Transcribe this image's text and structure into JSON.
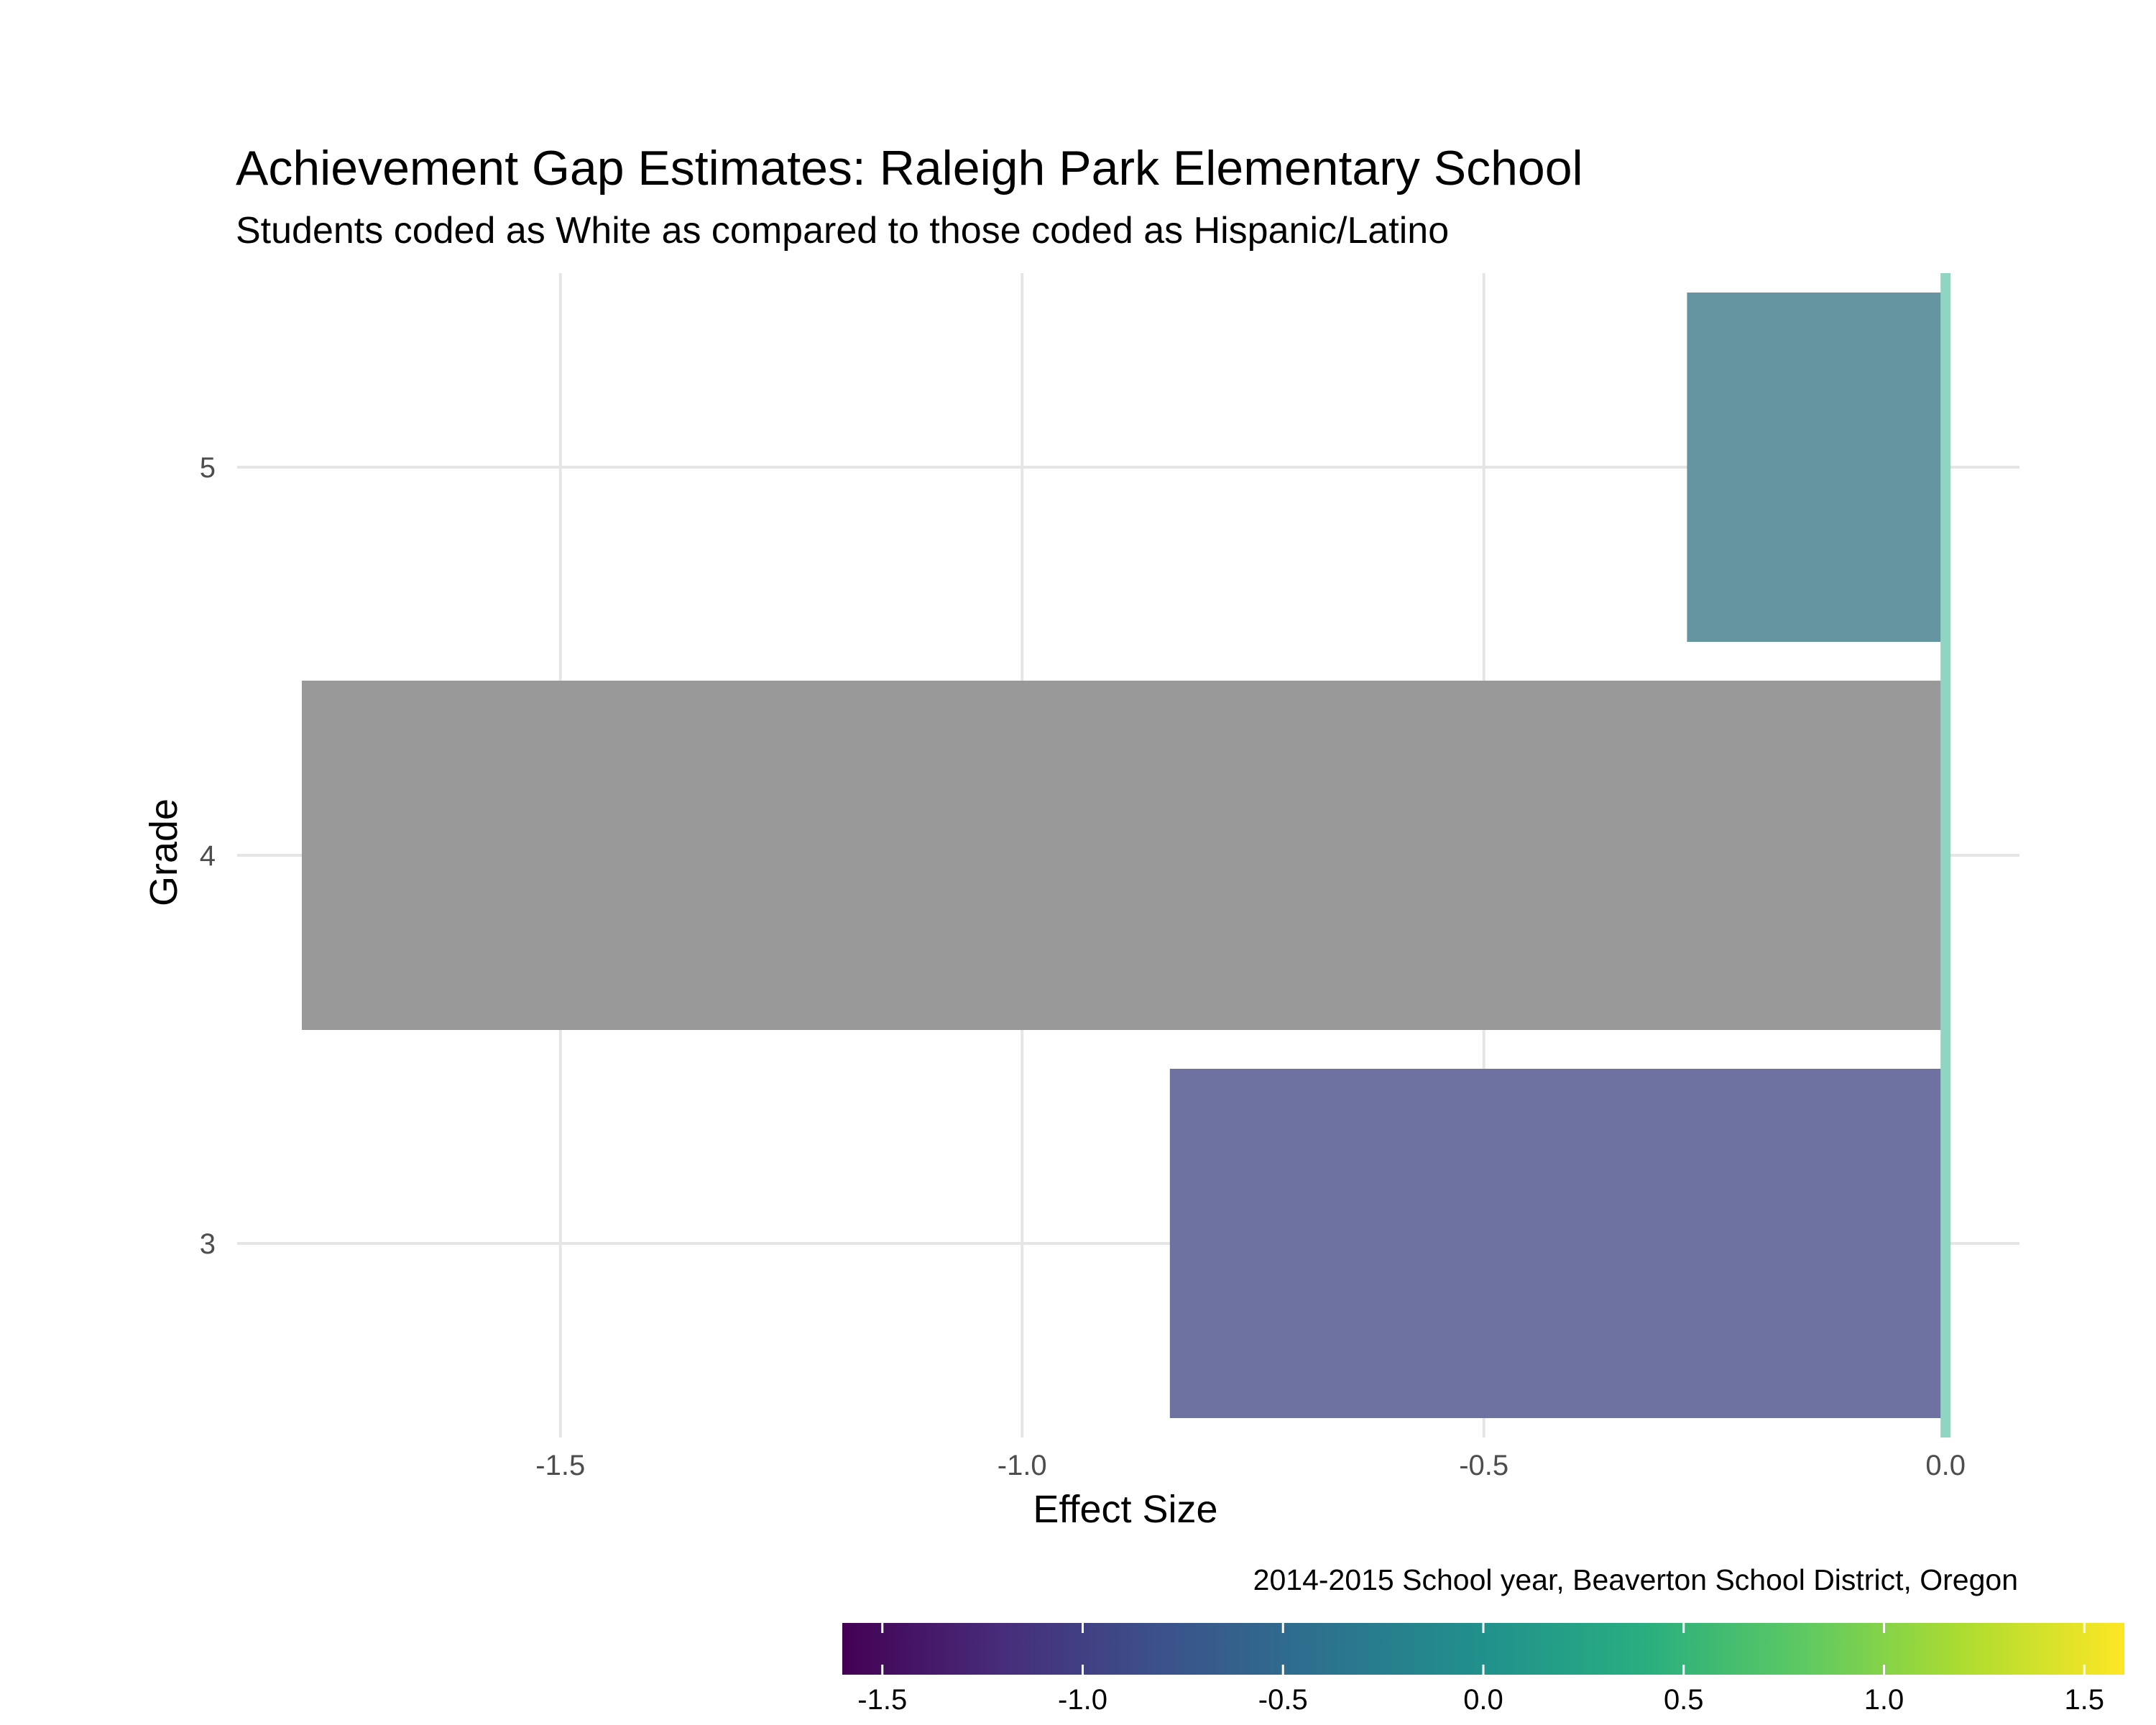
{
  "chart_data": {
    "type": "bar",
    "orientation": "horizontal",
    "title": "Achievement Gap Estimates: Raleigh Park Elementary School",
    "subtitle": "Students coded as White as compared to those coded as Hispanic/Latino",
    "xlabel": "Effect Size",
    "ylabel": "Grade",
    "caption": "2014-2015 School year, Beaverton School District, Oregon",
    "categories": [
      "3",
      "4",
      "5"
    ],
    "values": [
      -0.84,
      -1.78,
      -0.28
    ],
    "bar_colors": [
      "#6e72a0",
      "#999999",
      "#6595a0"
    ],
    "xlim": [
      -1.85,
      0.08
    ],
    "xticks": [
      -1.5,
      -1.0,
      -0.5,
      0.0
    ],
    "xtick_labels": [
      "-1.5",
      "-1.0",
      "-0.5",
      "0.0"
    ],
    "reference_line": {
      "x": 0.0,
      "color": "#90d5c2"
    },
    "grid": true,
    "colorbar": {
      "colormap": "viridis",
      "range": [
        -1.6,
        1.6
      ],
      "ticks": [
        -1.5,
        -1.0,
        -0.5,
        0.0,
        0.5,
        1.0,
        1.5
      ],
      "tick_labels": [
        "-1.5",
        "-1.0",
        "-0.5",
        "0.0",
        "0.5",
        "1.0",
        "1.5"
      ],
      "position": "bottom-right"
    }
  }
}
